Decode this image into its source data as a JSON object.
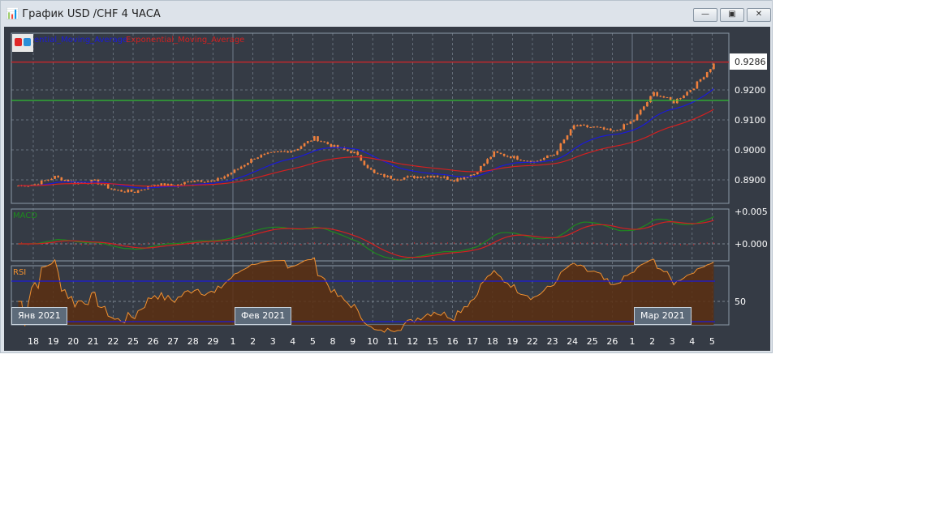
{
  "window": {
    "title": "График USD /CHF  4 ЧАСА",
    "minimize": "—",
    "restore": "▣",
    "close": "✕"
  },
  "legend": {
    "ma1": "ential_Moving_Average",
    "ma2": "Exponential_Moving_Average",
    "colors": {
      "ma1": "#1a1adb",
      "ma2": "#d42020"
    }
  },
  "price_axis": {
    "current": "0.9286",
    "ticks": [
      "0.9200",
      "0.9100",
      "0.9000",
      "0.8900"
    ]
  },
  "macd": {
    "label": "MACD",
    "ticks": [
      "+0.005",
      "+0.000"
    ]
  },
  "rsi": {
    "label": "RSI",
    "tick": "50"
  },
  "month_labels": [
    "Янв 2021",
    "Фев 2021",
    "Мар 2021"
  ],
  "days": [
    "18",
    "19",
    "20",
    "21",
    "22",
    "25",
    "26",
    "27",
    "28",
    "29",
    "1",
    "2",
    "3",
    "4",
    "5",
    "8",
    "9",
    "10",
    "11",
    "12",
    "15",
    "16",
    "17",
    "18",
    "19",
    "22",
    "23",
    "24",
    "25",
    "26",
    "1",
    "2",
    "3",
    "4",
    "5"
  ],
  "daily_close": [
    0.8885,
    0.891,
    0.889,
    0.8895,
    0.8865,
    0.886,
    0.8885,
    0.888,
    0.89,
    0.8895,
    0.893,
    0.8975,
    0.899,
    0.9,
    0.904,
    0.901,
    0.899,
    0.892,
    0.8905,
    0.891,
    0.8915,
    0.89,
    0.892,
    0.899,
    0.8975,
    0.896,
    0.8985,
    0.908,
    0.9075,
    0.906,
    0.91,
    0.919,
    0.916,
    0.921,
    0.9286
  ],
  "levels": {
    "resistance": 0.9293,
    "support": 0.9165
  },
  "colors": {
    "background": "#353b45",
    "candle": "#f0803c",
    "support": "#2ecc2e",
    "resistance": "#c0282c",
    "rsi": "#f09030",
    "rsi_over": "#cc44cc",
    "macd_main": "#1e8a1e",
    "macd_signal": "#d42020"
  }
}
